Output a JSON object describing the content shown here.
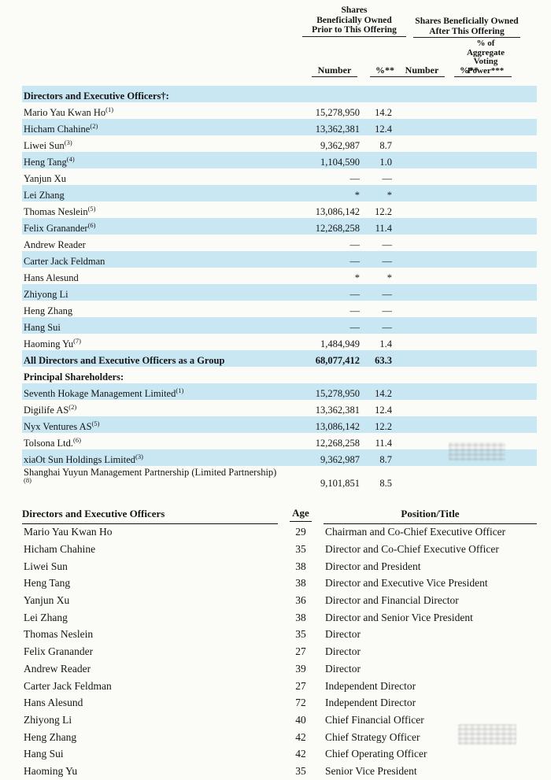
{
  "document": {
    "stripe_color": "#c9e7f3"
  },
  "ownership_table": {
    "prior_header_lines": [
      "Shares",
      "Beneficially Owned",
      "Prior to This Offering"
    ],
    "after_header_lines": [
      "Shares Beneficially Owned",
      "After This Offering"
    ],
    "voting_header_lines": [
      "% of",
      "Aggregate",
      "Voting",
      "Power***"
    ],
    "column_headers": {
      "prior_number": "Number",
      "prior_pct": "%**",
      "after_number": "Number",
      "after_pct": "%**"
    },
    "rows": [
      {
        "name": "Directors and Executive Officers†:",
        "footnote": "",
        "prior_number": "",
        "prior_pct": "",
        "bold": true,
        "shade": true
      },
      {
        "name": "Mario Yau Kwan Ho",
        "footnote": "(1)",
        "prior_number": "15,278,950",
        "prior_pct": "14.2",
        "bold": false,
        "shade": false
      },
      {
        "name": "Hicham Chahine",
        "footnote": "(2)",
        "prior_number": "13,362,381",
        "prior_pct": "12.4",
        "bold": false,
        "shade": true
      },
      {
        "name": "Liwei Sun",
        "footnote": "(3)",
        "prior_number": "9,362,987",
        "prior_pct": "8.7",
        "bold": false,
        "shade": false
      },
      {
        "name": "Heng Tang",
        "footnote": "(4)",
        "prior_number": "1,104,590",
        "prior_pct": "1.0",
        "bold": false,
        "shade": true
      },
      {
        "name": "Yanjun Xu",
        "footnote": "",
        "prior_number": "—",
        "prior_pct": "—",
        "bold": false,
        "shade": false
      },
      {
        "name": "Lei Zhang",
        "footnote": "",
        "prior_number": "*",
        "prior_pct": "*",
        "bold": false,
        "shade": true
      },
      {
        "name": "Thomas Neslein",
        "footnote": "(5)",
        "prior_number": "13,086,142",
        "prior_pct": "12.2",
        "bold": false,
        "shade": false
      },
      {
        "name": "Felix Granander",
        "footnote": "(6)",
        "prior_number": "12,268,258",
        "prior_pct": "11.4",
        "bold": false,
        "shade": true
      },
      {
        "name": "Andrew Reader",
        "footnote": "",
        "prior_number": "—",
        "prior_pct": "—",
        "bold": false,
        "shade": false
      },
      {
        "name": "Carter Jack Feldman",
        "footnote": "",
        "prior_number": "—",
        "prior_pct": "—",
        "bold": false,
        "shade": true
      },
      {
        "name": "Hans Alesund",
        "footnote": "",
        "prior_number": "*",
        "prior_pct": "*",
        "bold": false,
        "shade": false
      },
      {
        "name": "Zhiyong Li",
        "footnote": "",
        "prior_number": "—",
        "prior_pct": "—",
        "bold": false,
        "shade": true
      },
      {
        "name": "Heng Zhang",
        "footnote": "",
        "prior_number": "—",
        "prior_pct": "—",
        "bold": false,
        "shade": false
      },
      {
        "name": "Hang Sui",
        "footnote": "",
        "prior_number": "—",
        "prior_pct": "—",
        "bold": false,
        "shade": true
      },
      {
        "name": "Haoming Yu",
        "footnote": "(7)",
        "prior_number": "1,484,949",
        "prior_pct": "1.4",
        "bold": false,
        "shade": false
      },
      {
        "name": "All Directors and Executive Officers as a Group",
        "footnote": "",
        "prior_number": "68,077,412",
        "prior_pct": "63.3",
        "bold": true,
        "shade": true
      },
      {
        "name": "Principal Shareholders:",
        "footnote": "",
        "prior_number": "",
        "prior_pct": "",
        "bold": true,
        "shade": false
      },
      {
        "name": "Seventh Hokage Management Limited",
        "footnote": "(1)",
        "prior_number": "15,278,950",
        "prior_pct": "14.2",
        "bold": false,
        "shade": true
      },
      {
        "name": "Digilife AS",
        "footnote": "(2)",
        "prior_number": "13,362,381",
        "prior_pct": "12.4",
        "bold": false,
        "shade": false
      },
      {
        "name": "Nyx Ventures AS",
        "footnote": "(5)",
        "prior_number": "13,086,142",
        "prior_pct": "12.2",
        "bold": false,
        "shade": true
      },
      {
        "name": "Tolsona Ltd.",
        "footnote": "(6)",
        "prior_number": "12,268,258",
        "prior_pct": "11.4",
        "bold": false,
        "shade": false
      },
      {
        "name": "xiaOt Sun Holdings Limited",
        "footnote": "(3)",
        "prior_number": "9,362,987",
        "prior_pct": "8.7",
        "bold": false,
        "shade": true
      },
      {
        "name": "Shanghai Yuyun Management Partnership (Limited Partnership)",
        "footnote": "(8)",
        "prior_number": "9,101,851",
        "prior_pct": "8.5",
        "bold": false,
        "shade": false
      }
    ]
  },
  "officers_table": {
    "columns": {
      "name": "Directors and Executive Officers",
      "age": "Age",
      "title": "Position/Title"
    },
    "rows": [
      {
        "name": "Mario Yau Kwan Ho",
        "age": "29",
        "title": "Chairman and Co-Chief Executive Officer"
      },
      {
        "name": "Hicham Chahine",
        "age": "35",
        "title": "Director and Co-Chief Executive Officer"
      },
      {
        "name": "Liwei Sun",
        "age": "38",
        "title": "Director and President"
      },
      {
        "name": "Heng Tang",
        "age": "38",
        "title": "Director and Executive Vice President"
      },
      {
        "name": "Yanjun Xu",
        "age": "36",
        "title": "Director and Financial Director"
      },
      {
        "name": "Lei Zhang",
        "age": "38",
        "title": "Director and Senior Vice President"
      },
      {
        "name": "Thomas Neslein",
        "age": "35",
        "title": "Director"
      },
      {
        "name": "Felix Granander",
        "age": "27",
        "title": "Director"
      },
      {
        "name": "Andrew Reader",
        "age": "39",
        "title": "Director"
      },
      {
        "name": "Carter Jack Feldman",
        "age": "27",
        "title": "Independent Director"
      },
      {
        "name": "Hans Alesund",
        "age": "72",
        "title": "Independent Director"
      },
      {
        "name": "Zhiyong Li",
        "age": "40",
        "title": "Chief Financial Officer"
      },
      {
        "name": "Heng Zhang",
        "age": "42",
        "title": "Chief Strategy Officer"
      },
      {
        "name": "Hang Sui",
        "age": "42",
        "title": "Chief Operating Officer"
      },
      {
        "name": "Haoming Yu",
        "age": "35",
        "title": "Senior Vice President"
      }
    ]
  }
}
